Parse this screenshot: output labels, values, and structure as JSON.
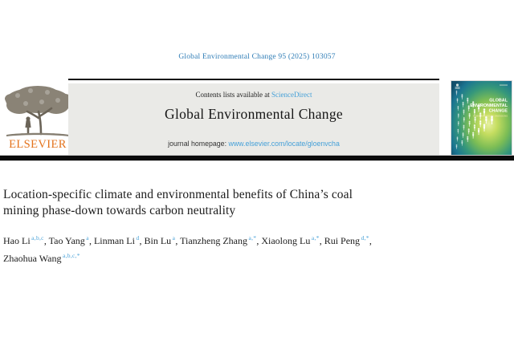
{
  "citation": "Global Environmental Change 95 (2025) 103057",
  "banner": {
    "contents_prefix": "Contents lists available at ",
    "sciencedirect_link": "ScienceDirect",
    "journal_name": "Global Environmental Change",
    "homepage_prefix": "journal homepage: ",
    "homepage_url": "www.elsevier.com/locate/gloenvcha"
  },
  "publisher": {
    "wordmark": "ELSEVIER"
  },
  "cover": {
    "title_lines": [
      "GLOBAL",
      "ENVIRONMENTAL",
      "CHANGE"
    ],
    "subtitle": "HUMAN AND POLICY DIMENSIONS"
  },
  "article": {
    "title_lines": [
      "Location-specific climate and environmental benefits of China’s coal",
      "mining phase-down towards carbon neutrality"
    ],
    "authors": [
      {
        "name": "Hao Li",
        "sup": "a,b,c"
      },
      {
        "name": "Tao Yang",
        "sup": "a"
      },
      {
        "name": "Linman Li",
        "sup": "d"
      },
      {
        "name": "Bin Lu",
        "sup": "a"
      },
      {
        "name": "Tianzheng Zhang",
        "sup": "a,*"
      },
      {
        "name": "Xiaolong Lu",
        "sup": "a,*"
      },
      {
        "name": "Rui Peng",
        "sup": "d,*",
        "break_after": true
      },
      {
        "name": "Zhaohua Wang",
        "sup": "a,b,c,*"
      }
    ]
  },
  "colors": {
    "citation_blue": "#2f7db6",
    "link_blue": "#45a0d8",
    "superscript_blue": "#4ba3d9",
    "elsevier_orange": "#e4731c"
  }
}
